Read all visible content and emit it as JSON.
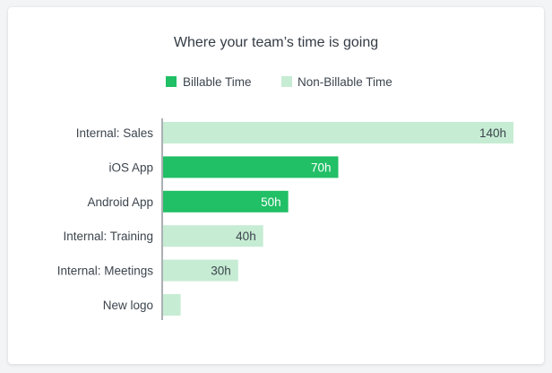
{
  "chart_data": {
    "type": "bar",
    "orientation": "horizontal",
    "title": "Where your team’s time is going",
    "legend_position": "top-center",
    "series": [
      {
        "name": "Billable Time",
        "color": "#21bf66"
      },
      {
        "name": "Non-Billable Time",
        "color": "#c6ecd3"
      }
    ],
    "categories": [
      "Internal: Sales",
      "iOS App",
      "Android App",
      "Internal: Training",
      "Internal: Meetings",
      "New logo"
    ],
    "values": [
      140,
      70,
      50,
      40,
      30,
      7
    ],
    "value_labels": [
      "140h",
      "70h",
      "50h",
      "40h",
      "30h",
      ""
    ],
    "bar_series": [
      "Non-Billable Time",
      "Billable Time",
      "Billable Time",
      "Non-Billable Time",
      "Non-Billable Time",
      "Non-Billable Time"
    ],
    "xlim": [
      0,
      140
    ],
    "grid": false
  }
}
